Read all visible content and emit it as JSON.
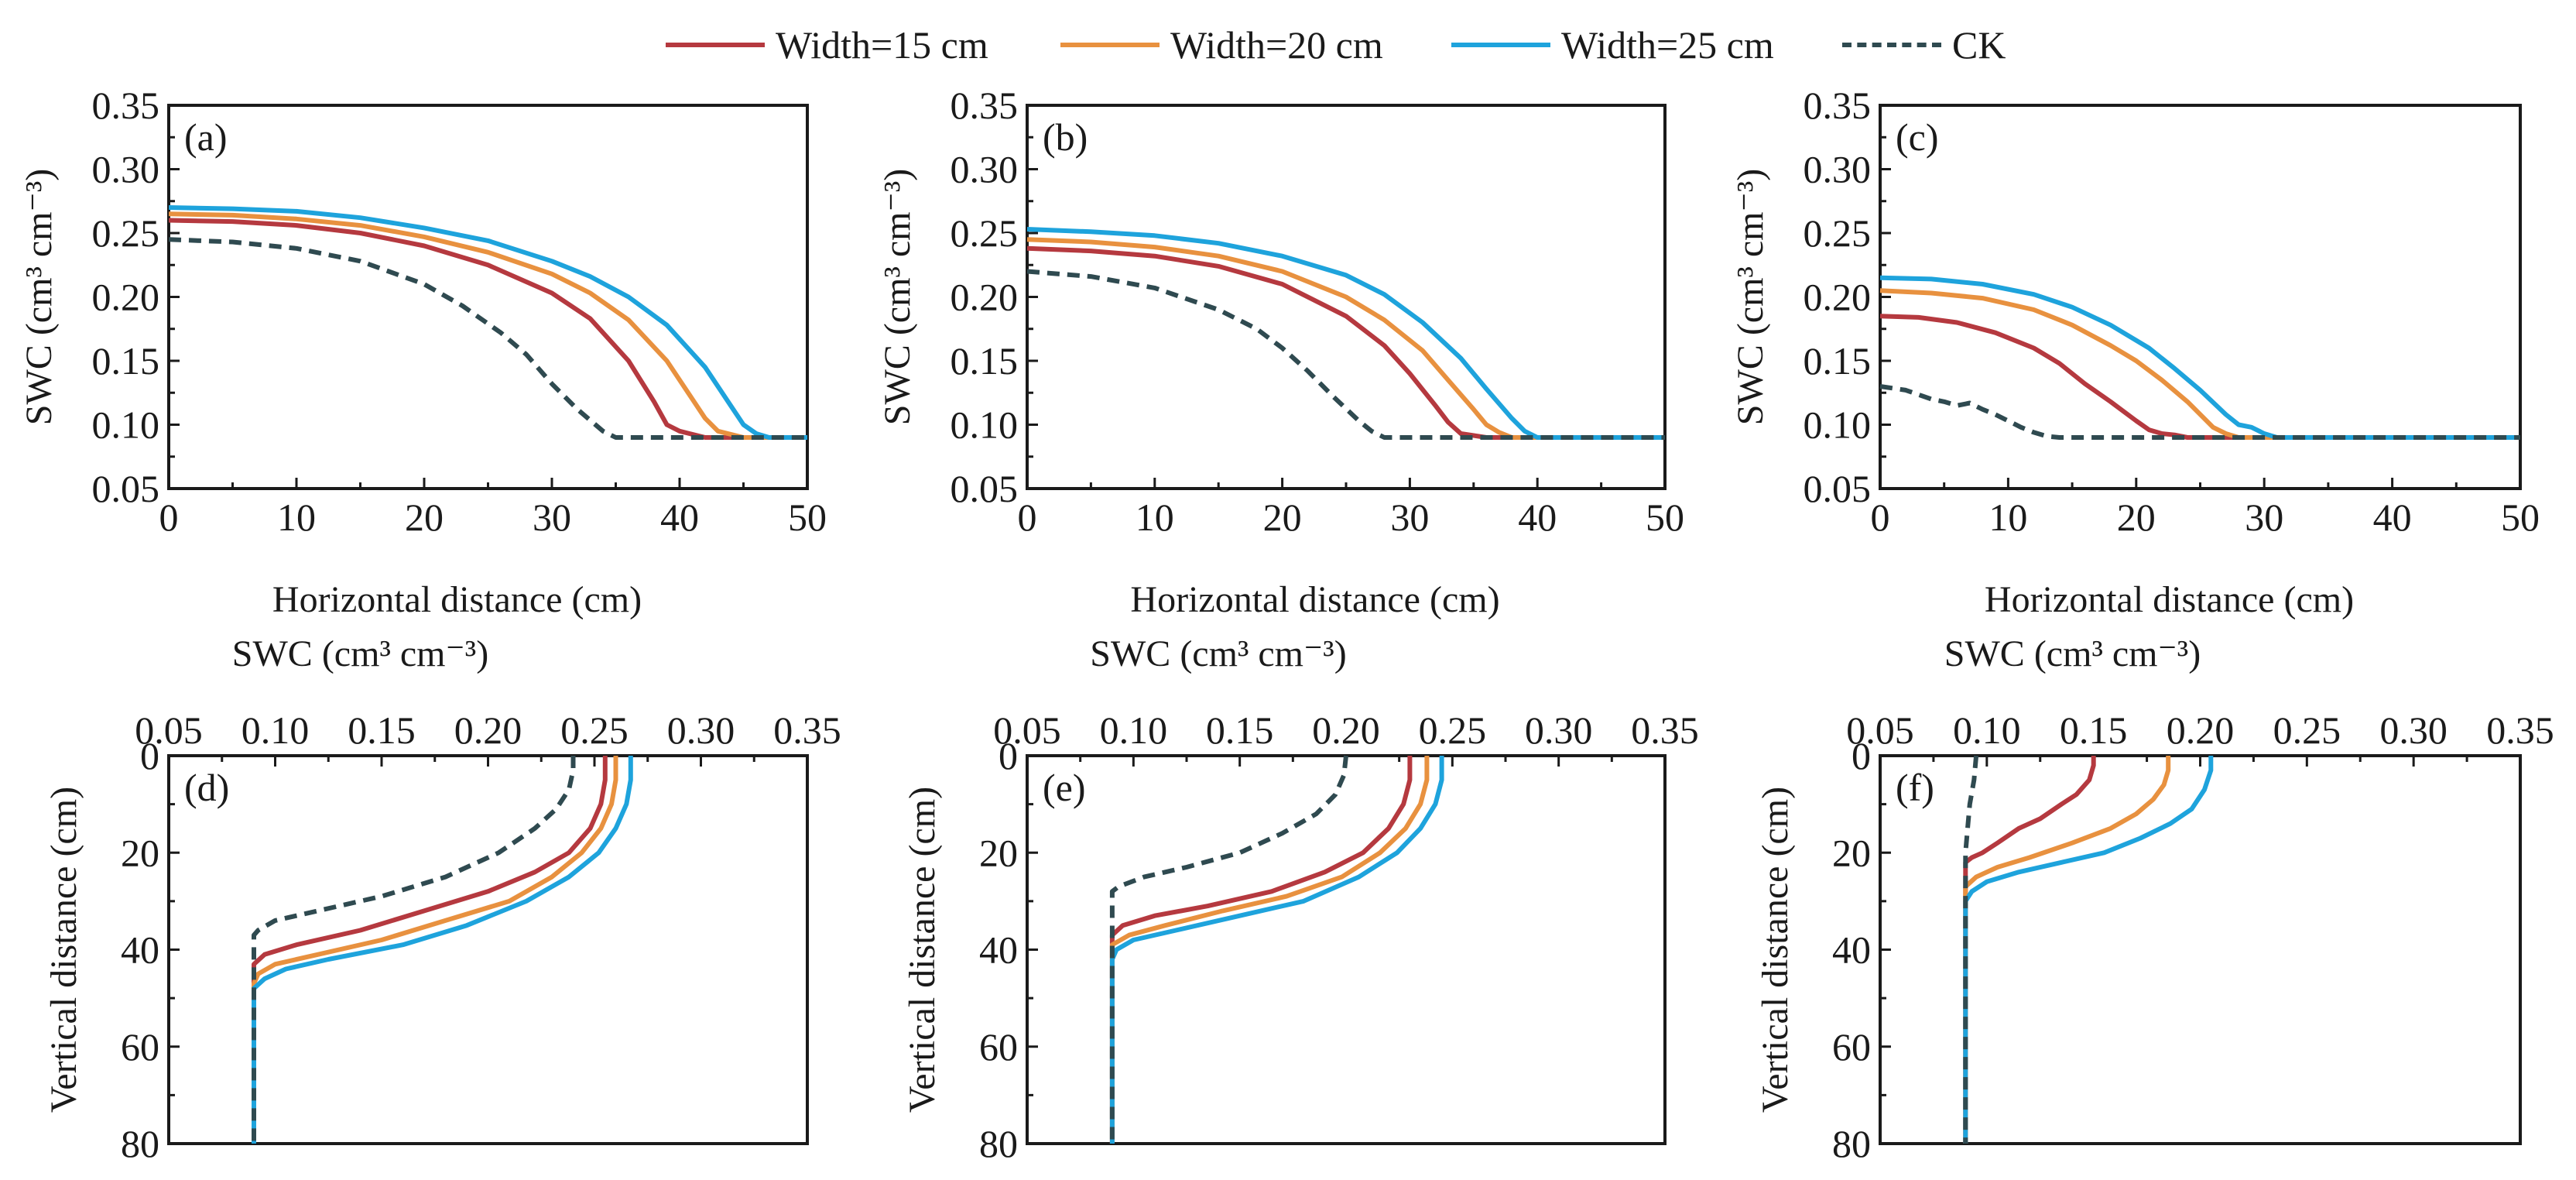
{
  "legend": [
    {
      "name": "Width=15 cm",
      "color": "#b5393f",
      "dashed": false
    },
    {
      "name": "Width=20 cm",
      "color": "#e8913f",
      "dashed": false
    },
    {
      "name": "Width=25 cm",
      "color": "#1ea3dc",
      "dashed": false
    },
    {
      "name": "CK",
      "color": "#2f4a50",
      "dashed": true
    }
  ],
  "chart_data": [
    {
      "panel": "(a)",
      "type": "line",
      "orientation": "horizontal",
      "xlabel": "Horizontal distance (cm)",
      "ylabel": "SWC (cm³ cm⁻³)",
      "xlim": [
        0,
        50
      ],
      "ylim": [
        0.05,
        0.35
      ],
      "xticks": [
        "0",
        "10",
        "20",
        "30",
        "40",
        "50"
      ],
      "yticks": [
        "0.05",
        "0.10",
        "0.15",
        "0.20",
        "0.25",
        "0.30",
        "0.35"
      ],
      "series": [
        {
          "name": "Width=15 cm",
          "x": [
            0,
            5,
            10,
            15,
            20,
            25,
            30,
            33,
            36,
            38,
            39,
            40,
            42,
            50
          ],
          "y": [
            0.26,
            0.259,
            0.256,
            0.25,
            0.24,
            0.225,
            0.203,
            0.183,
            0.15,
            0.118,
            0.1,
            0.095,
            0.09,
            0.09
          ]
        },
        {
          "name": "Width=20 cm",
          "x": [
            0,
            5,
            10,
            15,
            20,
            25,
            30,
            33,
            36,
            39,
            41,
            42,
            43,
            45,
            50
          ],
          "y": [
            0.265,
            0.264,
            0.261,
            0.256,
            0.247,
            0.235,
            0.218,
            0.203,
            0.182,
            0.15,
            0.12,
            0.105,
            0.095,
            0.09,
            0.09
          ]
        },
        {
          "name": "Width=25 cm",
          "x": [
            0,
            5,
            10,
            15,
            20,
            25,
            30,
            33,
            36,
            39,
            42,
            44,
            45,
            46,
            47,
            50
          ],
          "y": [
            0.27,
            0.269,
            0.267,
            0.262,
            0.254,
            0.244,
            0.228,
            0.216,
            0.2,
            0.178,
            0.145,
            0.115,
            0.1,
            0.093,
            0.09,
            0.09
          ]
        },
        {
          "name": "CK",
          "x": [
            0,
            5,
            10,
            15,
            20,
            23,
            26,
            28,
            30,
            32,
            34,
            35,
            36,
            40,
            50
          ],
          "y": [
            0.245,
            0.243,
            0.238,
            0.228,
            0.21,
            0.193,
            0.172,
            0.155,
            0.132,
            0.112,
            0.095,
            0.09,
            0.09,
            0.09,
            0.09
          ]
        }
      ]
    },
    {
      "panel": "(b)",
      "type": "line",
      "orientation": "horizontal",
      "xlabel": "Horizontal distance (cm)",
      "ylabel": "SWC (cm³ cm⁻³)",
      "xlim": [
        0,
        50
      ],
      "ylim": [
        0.05,
        0.35
      ],
      "xticks": [
        "0",
        "10",
        "20",
        "30",
        "40",
        "50"
      ],
      "yticks": [
        "0.05",
        "0.10",
        "0.15",
        "0.20",
        "0.25",
        "0.30",
        "0.35"
      ],
      "series": [
        {
          "name": "Width=15 cm",
          "x": [
            0,
            5,
            10,
            15,
            20,
            25,
            28,
            30,
            32,
            33,
            34,
            36,
            50
          ],
          "y": [
            0.238,
            0.236,
            0.232,
            0.224,
            0.21,
            0.185,
            0.162,
            0.14,
            0.115,
            0.102,
            0.093,
            0.09,
            0.09
          ]
        },
        {
          "name": "Width=20 cm",
          "x": [
            0,
            5,
            10,
            15,
            20,
            25,
            28,
            31,
            33,
            35,
            36,
            37,
            38,
            50
          ],
          "y": [
            0.245,
            0.243,
            0.239,
            0.232,
            0.22,
            0.2,
            0.182,
            0.158,
            0.135,
            0.112,
            0.1,
            0.094,
            0.09,
            0.09
          ]
        },
        {
          "name": "Width=25 cm",
          "x": [
            0,
            5,
            10,
            15,
            20,
            25,
            28,
            31,
            34,
            36,
            38,
            39,
            40,
            50
          ],
          "y": [
            0.253,
            0.251,
            0.248,
            0.242,
            0.232,
            0.217,
            0.202,
            0.18,
            0.152,
            0.128,
            0.105,
            0.095,
            0.09,
            0.09
          ]
        },
        {
          "name": "CK",
          "x": [
            0,
            5,
            10,
            15,
            18,
            20,
            22,
            24,
            26,
            27,
            28,
            29,
            30,
            50
          ],
          "y": [
            0.22,
            0.216,
            0.207,
            0.19,
            0.175,
            0.16,
            0.142,
            0.122,
            0.103,
            0.095,
            0.09,
            0.09,
            0.09,
            0.09
          ]
        }
      ]
    },
    {
      "panel": "(c)",
      "type": "line",
      "orientation": "horizontal",
      "xlabel": "Horizontal distance (cm)",
      "ylabel": "SWC (cm³ cm⁻³)",
      "xlim": [
        0,
        50
      ],
      "ylim": [
        0.05,
        0.35
      ],
      "xticks": [
        "0",
        "10",
        "20",
        "30",
        "40",
        "50"
      ],
      "yticks": [
        "0.05",
        "0.10",
        "0.15",
        "0.20",
        "0.25",
        "0.30",
        "0.35"
      ],
      "series": [
        {
          "name": "Width=15 cm",
          "x": [
            0,
            3,
            6,
            9,
            12,
            14,
            16,
            18,
            20,
            21,
            22,
            23,
            24,
            50
          ],
          "y": [
            0.185,
            0.184,
            0.18,
            0.172,
            0.16,
            0.148,
            0.132,
            0.118,
            0.103,
            0.096,
            0.093,
            0.092,
            0.09,
            0.09
          ]
        },
        {
          "name": "Width=20 cm",
          "x": [
            0,
            4,
            8,
            12,
            15,
            18,
            20,
            22,
            24,
            25,
            26,
            27,
            28,
            50
          ],
          "y": [
            0.205,
            0.203,
            0.199,
            0.19,
            0.178,
            0.162,
            0.15,
            0.135,
            0.118,
            0.108,
            0.098,
            0.093,
            0.09,
            0.09
          ]
        },
        {
          "name": "Width=25 cm",
          "x": [
            0,
            4,
            8,
            12,
            15,
            18,
            21,
            23,
            25,
            27,
            28,
            29,
            30,
            31,
            50
          ],
          "y": [
            0.215,
            0.214,
            0.21,
            0.202,
            0.192,
            0.178,
            0.16,
            0.144,
            0.127,
            0.108,
            0.1,
            0.098,
            0.093,
            0.09,
            0.09
          ]
        },
        {
          "name": "CK",
          "x": [
            0,
            2,
            4,
            5,
            6,
            7,
            8,
            9,
            10,
            11,
            12,
            13,
            14,
            50
          ],
          "y": [
            0.13,
            0.127,
            0.12,
            0.118,
            0.115,
            0.117,
            0.112,
            0.108,
            0.103,
            0.098,
            0.094,
            0.091,
            0.09,
            0.09
          ]
        }
      ]
    },
    {
      "panel": "(d)",
      "type": "line",
      "orientation": "vertical",
      "xlabel": "SWC (cm³ cm⁻³)",
      "ylabel": "Vertical distance (cm)",
      "xlim": [
        0.05,
        0.35
      ],
      "ylim": [
        80,
        0
      ],
      "xticks": [
        "0.05",
        "0.10",
        "0.15",
        "0.20",
        "0.25",
        "0.30",
        "0.35"
      ],
      "yticks": [
        "0",
        "20",
        "40",
        "60",
        "80"
      ],
      "series": [
        {
          "name": "Width=15 cm",
          "x": [
            0.255,
            0.255,
            0.253,
            0.248,
            0.238,
            0.222,
            0.2,
            0.17,
            0.14,
            0.11,
            0.095,
            0.09,
            0.09,
            0.09
          ],
          "y": [
            0,
            5,
            10,
            15,
            20,
            24,
            28,
            32,
            36,
            39,
            41,
            43,
            45,
            80
          ]
        },
        {
          "name": "Width=20 cm",
          "x": [
            0.26,
            0.26,
            0.258,
            0.253,
            0.244,
            0.23,
            0.21,
            0.18,
            0.15,
            0.12,
            0.1,
            0.092,
            0.09,
            0.09
          ],
          "y": [
            0,
            5,
            10,
            15,
            20,
            25,
            30,
            34,
            38,
            41,
            43,
            45,
            47,
            80
          ]
        },
        {
          "name": "Width=25 cm",
          "x": [
            0.267,
            0.267,
            0.265,
            0.26,
            0.252,
            0.238,
            0.218,
            0.19,
            0.16,
            0.125,
            0.105,
            0.095,
            0.09,
            0.09
          ],
          "y": [
            0,
            5,
            10,
            15,
            20,
            25,
            30,
            35,
            39,
            42,
            44,
            46,
            48,
            80
          ]
        },
        {
          "name": "CK",
          "x": [
            0.24,
            0.24,
            0.238,
            0.232,
            0.222,
            0.205,
            0.18,
            0.15,
            0.12,
            0.1,
            0.092,
            0.09,
            0.09
          ],
          "y": [
            0,
            3,
            7,
            11,
            15,
            20,
            25,
            29,
            32,
            34,
            36,
            37,
            80
          ]
        }
      ]
    },
    {
      "panel": "(e)",
      "type": "line",
      "orientation": "vertical",
      "xlabel": "SWC (cm³ cm⁻³)",
      "ylabel": "Vertical distance (cm)",
      "xlim": [
        0.05,
        0.35
      ],
      "ylim": [
        80,
        0
      ],
      "xticks": [
        "0.05",
        "0.10",
        "0.15",
        "0.20",
        "0.25",
        "0.30",
        "0.35"
      ],
      "yticks": [
        "0",
        "20",
        "40",
        "60",
        "80"
      ],
      "series": [
        {
          "name": "Width=15 cm",
          "x": [
            0.23,
            0.23,
            0.227,
            0.22,
            0.208,
            0.19,
            0.165,
            0.135,
            0.11,
            0.095,
            0.09,
            0.09
          ],
          "y": [
            0,
            5,
            10,
            15,
            20,
            24,
            28,
            31,
            33,
            35,
            37,
            80
          ]
        },
        {
          "name": "Width=20 cm",
          "x": [
            0.238,
            0.238,
            0.235,
            0.228,
            0.216,
            0.198,
            0.172,
            0.142,
            0.115,
            0.098,
            0.09,
            0.09
          ],
          "y": [
            0,
            5,
            10,
            15,
            20,
            25,
            29,
            32,
            35,
            37,
            39,
            80
          ]
        },
        {
          "name": "Width=25 cm",
          "x": [
            0.245,
            0.245,
            0.242,
            0.235,
            0.224,
            0.206,
            0.18,
            0.15,
            0.12,
            0.1,
            0.092,
            0.09,
            0.09
          ],
          "y": [
            0,
            5,
            10,
            15,
            20,
            25,
            30,
            33,
            36,
            38,
            40,
            42,
            80
          ]
        },
        {
          "name": "CK",
          "x": [
            0.2,
            0.199,
            0.195,
            0.186,
            0.17,
            0.15,
            0.125,
            0.105,
            0.093,
            0.09,
            0.09
          ],
          "y": [
            0,
            4,
            8,
            12,
            16,
            20,
            23,
            25,
            27,
            28,
            80
          ]
        }
      ]
    },
    {
      "panel": "(f)",
      "type": "line",
      "orientation": "vertical",
      "xlabel": "SWC (cm³ cm⁻³)",
      "ylabel": "Vertical distance (cm)",
      "xlim": [
        0.05,
        0.35
      ],
      "ylim": [
        80,
        0
      ],
      "xticks": [
        "0.05",
        "0.10",
        "0.15",
        "0.20",
        "0.25",
        "0.30",
        "0.35"
      ],
      "yticks": [
        "0",
        "20",
        "40",
        "60",
        "80"
      ],
      "series": [
        {
          "name": "Width=15 cm",
          "x": [
            0.15,
            0.15,
            0.148,
            0.142,
            0.135,
            0.125,
            0.115,
            0.105,
            0.098,
            0.093,
            0.09,
            0.09
          ],
          "y": [
            0,
            2,
            5,
            8,
            10,
            13,
            15,
            18,
            20,
            21,
            22,
            80
          ]
        },
        {
          "name": "Width=20 cm",
          "x": [
            0.185,
            0.185,
            0.183,
            0.178,
            0.17,
            0.158,
            0.14,
            0.12,
            0.105,
            0.095,
            0.09,
            0.09
          ],
          "y": [
            0,
            3,
            6,
            9,
            12,
            15,
            18,
            21,
            23,
            25,
            27,
            80
          ]
        },
        {
          "name": "Width=25 cm",
          "x": [
            0.205,
            0.205,
            0.202,
            0.196,
            0.186,
            0.172,
            0.155,
            0.135,
            0.115,
            0.1,
            0.093,
            0.09,
            0.09
          ],
          "y": [
            0,
            3,
            7,
            11,
            14,
            17,
            20,
            22,
            24,
            26,
            28,
            30,
            80
          ]
        },
        {
          "name": "CK",
          "x": [
            0.095,
            0.094,
            0.092,
            0.091,
            0.09,
            0.09
          ],
          "y": [
            0,
            5,
            10,
            15,
            20,
            80
          ]
        }
      ]
    }
  ]
}
